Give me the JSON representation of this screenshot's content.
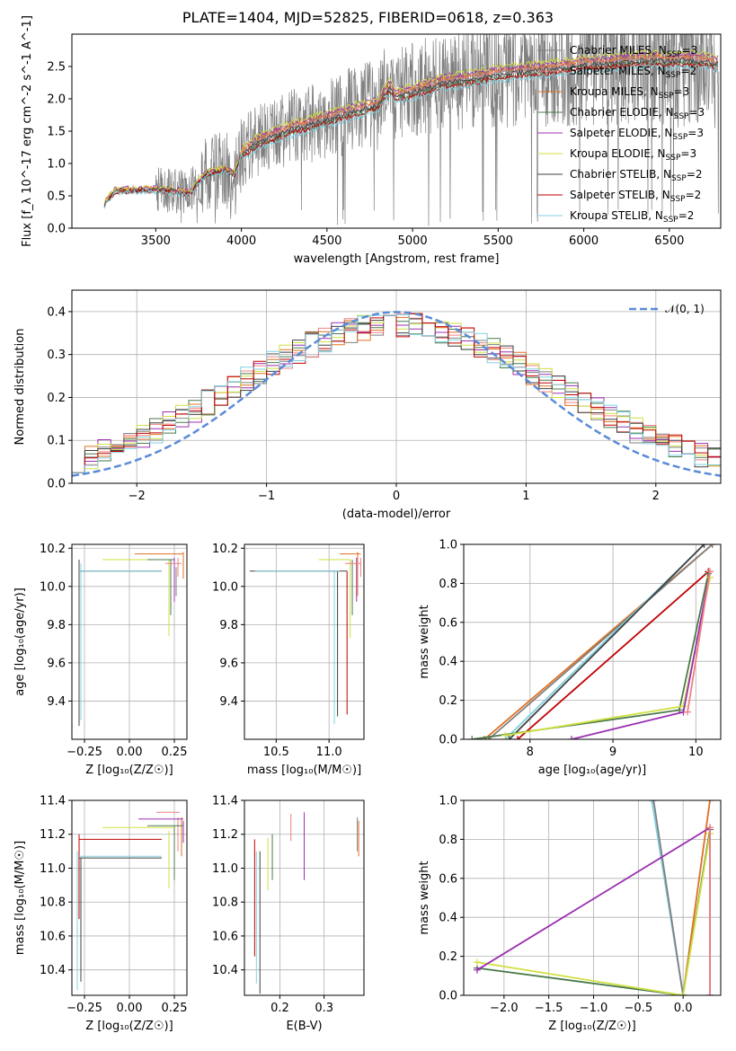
{
  "title": "PLATE=1404, MJD=52825, FIBERID=0618, z=0.363",
  "colors": {
    "Chabrier MILES": "#808080",
    "Salpeter MILES": "#f08080",
    "Kroupa MILES": "#e07020",
    "Chabrier ELODIE": "#4a7a4a",
    "Salpeter ELODIE": "#9b30b0",
    "Kroupa ELODIE": "#d0e040",
    "Chabrier STELIB": "#404040",
    "Salpeter STELIB": "#c00000",
    "Kroupa STELIB": "#80d0e0",
    "gaussian": "#5b8bd8",
    "data": "#808080"
  },
  "legend_spectrum": [
    {
      "model": "Chabrier MILES",
      "nssp": "3"
    },
    {
      "model": "Salpeter MILES",
      "nssp": "2"
    },
    {
      "model": "Kroupa MILES",
      "nssp": "3"
    },
    {
      "model": "Chabrier ELODIE",
      "nssp": "3"
    },
    {
      "model": "Salpeter ELODIE",
      "nssp": "3"
    },
    {
      "model": "Kroupa ELODIE",
      "nssp": "3"
    },
    {
      "model": "Chabrier STELIB",
      "nssp": "2"
    },
    {
      "model": "Salpeter STELIB",
      "nssp": "2"
    },
    {
      "model": "Kroupa STELIB",
      "nssp": "2"
    }
  ],
  "chart_data": [
    {
      "id": "spectrum",
      "type": "line",
      "xlabel": "wavelength [Angstrom, rest frame]",
      "ylabel": "Flux [f_λ 10^-17 erg cm^-2 s^-1 A^-1]",
      "xlim": [
        3010,
        6800
      ],
      "ylim": [
        0,
        3.0
      ],
      "xticks": [
        3500,
        4000,
        4500,
        5000,
        5500,
        6000,
        6500
      ],
      "yticks": [
        0.0,
        0.5,
        1.0,
        1.5,
        2.0,
        2.5
      ],
      "continuum": {
        "x": [
          3200,
          3260,
          3400,
          3500,
          3600,
          3700,
          3760,
          3800,
          3900,
          3960,
          4000,
          4100,
          4200,
          4300,
          4400,
          4500,
          4600,
          4700,
          4800,
          4860,
          4900,
          5000,
          5100,
          5200,
          5300,
          5400,
          5500,
          5600,
          5700,
          5800,
          5900,
          6000,
          6100,
          6200,
          6300,
          6400,
          6500,
          6600,
          6700,
          6790
        ],
        "y": [
          0.38,
          0.58,
          0.6,
          0.6,
          0.58,
          0.55,
          0.75,
          0.85,
          0.9,
          0.85,
          1.15,
          1.35,
          1.45,
          1.55,
          1.62,
          1.7,
          1.78,
          1.85,
          1.92,
          2.2,
          2.05,
          2.12,
          2.2,
          2.28,
          2.3,
          2.35,
          2.4,
          2.42,
          2.45,
          2.48,
          2.5,
          2.55,
          2.55,
          2.58,
          2.6,
          2.62,
          2.6,
          2.62,
          2.6,
          2.55
        ]
      },
      "series_offsets": [
        0.0,
        0.02,
        0.05,
        -0.06,
        0.08,
        0.1,
        -0.02,
        -0.08,
        -0.12
      ]
    },
    {
      "id": "residuals",
      "type": "histogram",
      "xlabel": "(data-model)/error",
      "ylabel": "Normed distribution",
      "xlim": [
        -2.5,
        2.5
      ],
      "ylim": [
        0,
        0.45
      ],
      "xticks": [
        -2,
        -1,
        0,
        1,
        2
      ],
      "yticks": [
        0.0,
        0.1,
        0.2,
        0.3,
        0.4
      ],
      "bins": [
        -2.5,
        2.5,
        50
      ],
      "gaussian_label": "𝒩(0, 1)"
    },
    {
      "id": "age-vs-Z",
      "type": "scatter",
      "xlabel": "Z [log₁₀(Z/Z☉)]",
      "ylabel": "age  [log₁₀(age/yr)]",
      "xlim": [
        -0.32,
        0.32
      ],
      "ylim": [
        9.2,
        10.22
      ],
      "xticks": [
        -0.25,
        0.0,
        0.25
      ],
      "xtick_labels": [
        "−0.25",
        "0.00",
        "0.25"
      ],
      "yticks": [
        9.4,
        9.6,
        9.8,
        10.0,
        10.2
      ],
      "ytick_labels": [
        "9.4",
        "9.6",
        "9.8",
        "10.0",
        "10.2"
      ]
    },
    {
      "id": "age-vs-mass",
      "type": "scatter",
      "xlabel": "mass [log₁₀(M/M☉)]",
      "xlim": [
        10.2,
        11.33
      ],
      "ylim": [
        9.2,
        10.22
      ],
      "xticks": [
        10.5,
        11.0
      ],
      "xtick_labels": [
        "10.5",
        "11.0"
      ],
      "yticks": [
        9.4,
        9.6,
        9.8,
        10.0,
        10.2
      ],
      "ytick_labels": [
        "9.4",
        "9.6",
        "9.8",
        "10.0",
        "10.2"
      ]
    },
    {
      "id": "weight-vs-age",
      "type": "line",
      "xlabel": "age  [log₁₀(age/yr)]",
      "ylabel": "mass weight",
      "xlim": [
        7.2,
        10.3
      ],
      "ylim": [
        0,
        1.0
      ],
      "xticks": [
        8,
        9,
        10
      ],
      "xtick_labels": [
        "8",
        "9",
        "10"
      ],
      "yticks": [
        0.0,
        0.2,
        0.4,
        0.6,
        0.8,
        1.0
      ],
      "ytick_labels": [
        "0.0",
        "0.2",
        "0.4",
        "0.6",
        "0.8",
        "1.0"
      ]
    },
    {
      "id": "mass-vs-Z",
      "type": "scatter",
      "xlabel": "Z [log₁₀(Z/Z☉)]",
      "ylabel": "mass [log₁₀(M/M☉)]",
      "xlim": [
        -0.32,
        0.32
      ],
      "ylim": [
        10.25,
        11.4
      ],
      "xticks": [
        -0.25,
        0.0,
        0.25
      ],
      "xtick_labels": [
        "−0.25",
        "0.00",
        "0.25"
      ],
      "yticks": [
        10.4,
        10.6,
        10.8,
        11.0,
        11.2,
        11.4
      ],
      "ytick_labels": [
        "10.4",
        "10.6",
        "10.8",
        "11.0",
        "11.2",
        "11.4"
      ]
    },
    {
      "id": "mass-vs-ebv",
      "type": "scatter",
      "xlabel": "E(B-V)",
      "xlim": [
        0.12,
        0.39
      ],
      "ylim": [
        10.25,
        11.4
      ],
      "xticks": [
        0.2,
        0.3
      ],
      "xtick_labels": [
        "0.2",
        "0.3"
      ],
      "yticks": [
        10.4,
        10.6,
        10.8,
        11.0,
        11.2,
        11.4
      ],
      "ytick_labels": [
        "10.4",
        "10.6",
        "10.8",
        "11.0",
        "11.2",
        "11.4"
      ]
    },
    {
      "id": "weight-vs-Z",
      "type": "line",
      "xlabel": "Z [log₁₀(Z/Z☉)]",
      "ylabel": "mass weight",
      "xlim": [
        -2.45,
        0.42
      ],
      "ylim": [
        0,
        1.0
      ],
      "xticks": [
        -2.0,
        -1.5,
        -1.0,
        -0.5,
        0.0
      ],
      "xtick_labels": [
        "−2.0",
        "−1.5",
        "−1.0",
        "−0.5",
        "0.0"
      ],
      "yticks": [
        0.0,
        0.2,
        0.4,
        0.6,
        0.8,
        1.0
      ],
      "ytick_labels": [
        "0.0",
        "0.2",
        "0.4",
        "0.6",
        "0.8",
        "1.0"
      ]
    }
  ]
}
